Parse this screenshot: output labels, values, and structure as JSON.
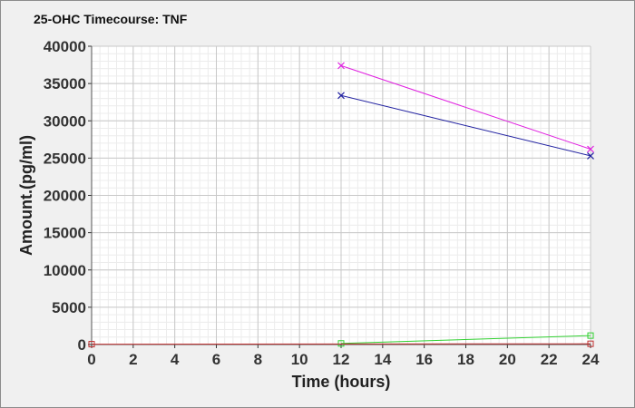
{
  "chart_data": {
    "type": "line",
    "title": "25-OHC Timecourse: TNF",
    "xlabel": "Time (hours)",
    "ylabel": "Amount.(pg/ml)",
    "xlim": [
      0,
      24
    ],
    "ylim": [
      0,
      40000
    ],
    "x_ticks": [
      0,
      2,
      4,
      6,
      8,
      10,
      12,
      14,
      16,
      18,
      20,
      22,
      24
    ],
    "y_ticks": [
      0,
      5000,
      10000,
      15000,
      20000,
      25000,
      30000,
      35000,
      40000
    ],
    "grid": true,
    "legend": "none",
    "series": [
      {
        "color": "#e020e0",
        "marker": "x",
        "points": [
          [
            12,
            37400
          ],
          [
            24,
            26200
          ]
        ]
      },
      {
        "color": "#2020a0",
        "marker": "x",
        "points": [
          [
            12,
            33400
          ],
          [
            24,
            25300
          ]
        ]
      },
      {
        "color": "#30d030",
        "marker": "square",
        "points": [
          [
            12,
            150
          ],
          [
            24,
            1200
          ]
        ]
      },
      {
        "color": "#c03030",
        "marker": "square",
        "points": [
          [
            0,
            50
          ],
          [
            24,
            100
          ]
        ]
      }
    ]
  }
}
